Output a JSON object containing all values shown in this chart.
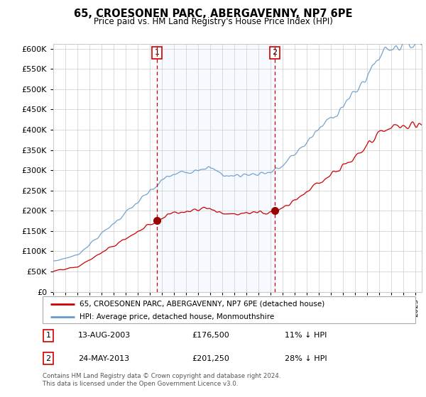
{
  "title": "65, CROESONEN PARC, ABERGAVENNY, NP7 6PE",
  "subtitle": "Price paid vs. HM Land Registry's House Price Index (HPI)",
  "hpi_label": "HPI: Average price, detached house, Monmouthshire",
  "price_label": "65, CROESONEN PARC, ABERGAVENNY, NP7 6PE (detached house)",
  "purchase1_date": "13-AUG-2003",
  "purchase1_price": 176500,
  "purchase1_note": "11% ↓ HPI",
  "purchase2_date": "24-MAY-2013",
  "purchase2_price": 201250,
  "purchase2_note": "28% ↓ HPI",
  "footer": "Contains HM Land Registry data © Crown copyright and database right 2024.\nThis data is licensed under the Open Government Licence v3.0.",
  "ylim": [
    0,
    612500
  ],
  "yticks": [
    0,
    50000,
    100000,
    150000,
    200000,
    250000,
    300000,
    350000,
    400000,
    450000,
    500000,
    550000,
    600000
  ],
  "price_color": "#cc0000",
  "hpi_color": "#6699cc",
  "vline_color": "#cc0000",
  "shade_color": "#ddeeff",
  "purchase_marker_color": "#990000",
  "box_color": "#cc0000"
}
